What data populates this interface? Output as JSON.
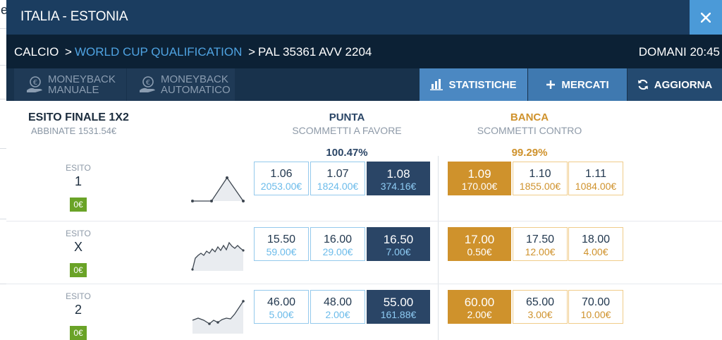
{
  "window": {
    "title": "ITALIA - ESTONIA",
    "close_icon": "close-icon",
    "bg_letter": "e"
  },
  "info": {
    "breadcrumb": {
      "sport": "CALCIO",
      "separator": ">",
      "competition": "WORLD CUP QUALIFICATION",
      "event": "PAL 35361 AVV 2204"
    },
    "time": "DOMANI 20:45"
  },
  "toolbar": {
    "moneyback_manual": [
      "MONEYBACK",
      "MANUALE"
    ],
    "moneyback_auto": [
      "MONEYBACK",
      "AUTOMATICO"
    ],
    "statistiche": "STATISTICHE",
    "mercati": "MERCATI",
    "aggiorna": "AGGIORNA"
  },
  "market": {
    "name": "ESITO FINALE 1X2",
    "matched": "ABBINATE 1531.54€"
  },
  "columns": {
    "punta": {
      "title": "PUNTA",
      "subtitle": "SCOMMETTI A FAVORE",
      "percent": "100.47%"
    },
    "banca": {
      "title": "BANCA",
      "subtitle": "SCOMMETTI CONTRO",
      "percent": "99.29%"
    }
  },
  "runners": [
    {
      "label": "ESITO",
      "name": "1",
      "pl": "0€",
      "back": [
        {
          "odd": "1.06",
          "amount": "2053.00€"
        },
        {
          "odd": "1.07",
          "amount": "1824.00€"
        },
        {
          "odd": "1.08",
          "amount": "374.16€"
        }
      ],
      "lay": [
        {
          "odd": "1.09",
          "amount": "170.00€"
        },
        {
          "odd": "1.10",
          "amount": "1855.00€"
        },
        {
          "odd": "1.11",
          "amount": "1084.00€"
        }
      ]
    },
    {
      "label": "ESITO",
      "name": "X",
      "pl": "0€",
      "back": [
        {
          "odd": "15.50",
          "amount": "59.00€"
        },
        {
          "odd": "16.00",
          "amount": "29.00€"
        },
        {
          "odd": "16.50",
          "amount": "7.00€"
        }
      ],
      "lay": [
        {
          "odd": "17.00",
          "amount": "0.50€"
        },
        {
          "odd": "17.50",
          "amount": "12.00€"
        },
        {
          "odd": "18.00",
          "amount": "4.00€"
        }
      ]
    },
    {
      "label": "ESITO",
      "name": "2",
      "pl": "0€",
      "back": [
        {
          "odd": "46.00",
          "amount": "5.00€"
        },
        {
          "odd": "48.00",
          "amount": "2.00€"
        },
        {
          "odd": "55.00",
          "amount": "161.88€"
        }
      ],
      "lay": [
        {
          "odd": "60.00",
          "amount": "2.00€"
        },
        {
          "odd": "65.00",
          "amount": "3.00€"
        },
        {
          "odd": "70.00",
          "amount": "10.00€"
        }
      ]
    }
  ],
  "colors": {
    "back_best": "#2a4566",
    "lay_best": "#cf922c",
    "back_amount": "#6bbbea",
    "badge": "#6aa327"
  }
}
